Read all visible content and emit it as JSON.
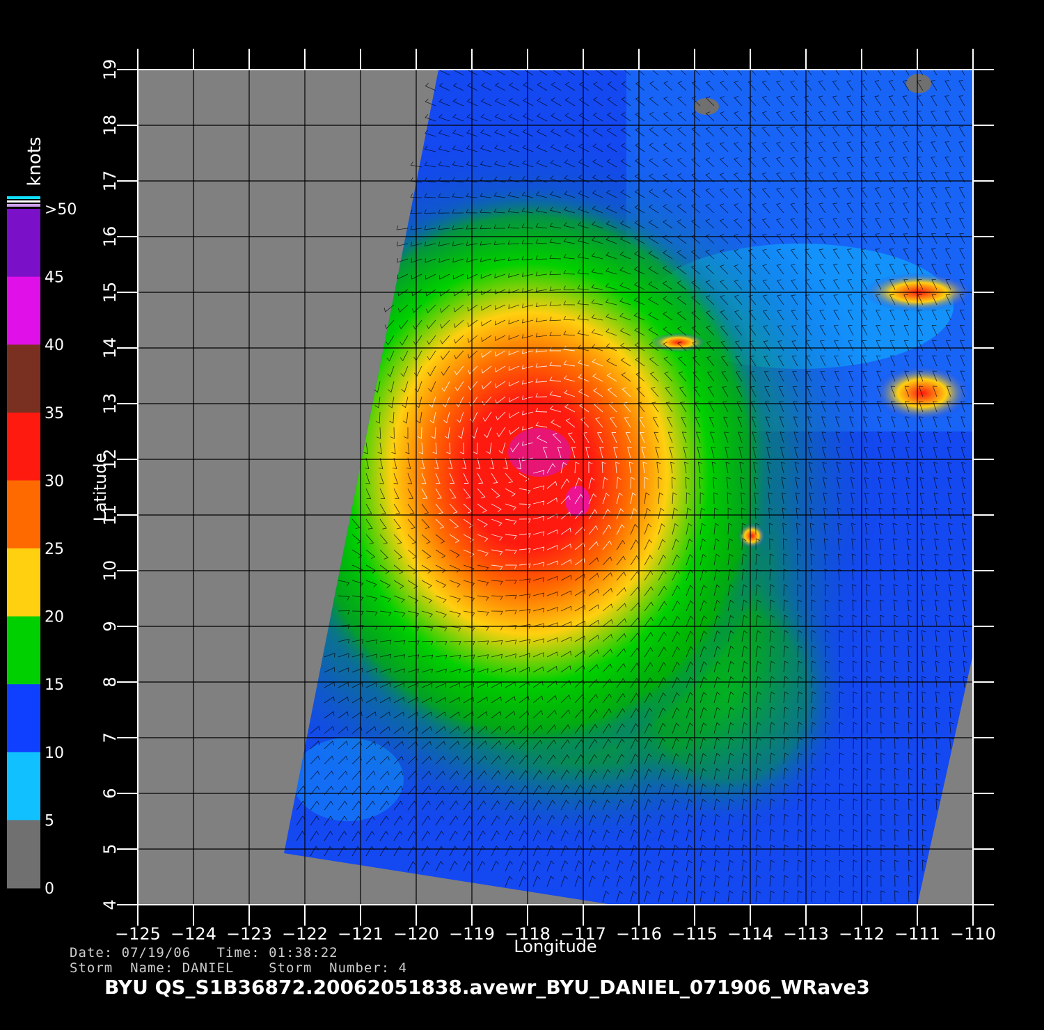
{
  "map": {
    "lon_ticks": [
      "-125",
      "-124",
      "-123",
      "-122",
      "-121",
      "-120",
      "-119",
      "-118",
      "-117",
      "-116",
      "-115",
      "-114",
      "-113",
      "-112",
      "-111",
      "-110"
    ],
    "lat_ticks": [
      "4",
      "5",
      "6",
      "7",
      "8",
      "9",
      "10",
      "11",
      "12",
      "13",
      "14",
      "15",
      "16",
      "17",
      "18",
      "19"
    ],
    "xlabel": "Longitude",
    "ylabel": "Latitude",
    "lon_range": [
      -125,
      -110
    ],
    "lat_range": [
      4,
      19
    ],
    "storm_center": {
      "lon": -117.9,
      "lat": 12.0
    },
    "land_color": "#808080"
  },
  "colorbar": {
    "unit": "knots",
    "labels": [
      ">50",
      "45",
      "40",
      "35",
      "30",
      "25",
      "20",
      "15",
      "10",
      "5",
      "0"
    ],
    "bands": [
      {
        "from": 45,
        "to": 50,
        "color": "#7a10c8"
      },
      {
        "from": 40,
        "to": 45,
        "color": "#e010e8"
      },
      {
        "from": 35,
        "to": 40,
        "color": "#7a3020"
      },
      {
        "from": 30,
        "to": 35,
        "color": "#ff1a10"
      },
      {
        "from": 25,
        "to": 30,
        "color": "#ff6a00"
      },
      {
        "from": 20,
        "to": 25,
        "color": "#ffd010"
      },
      {
        "from": 15,
        "to": 20,
        "color": "#00d000"
      },
      {
        "from": 10,
        "to": 15,
        "color": "#1040ff"
      },
      {
        "from": 5,
        "to": 10,
        "color": "#10c0ff"
      },
      {
        "from": 0,
        "to": 5,
        "color": "#707070"
      }
    ]
  },
  "info": {
    "date_line": "Date: 07/19/06   Time: 01:38:22",
    "storm_line": "Storm  Name: DANIEL    Storm  Number: 4",
    "filename": "BYU  QS_S1B36872.20062051838.avewr_BYU_DANIEL_071906_WRave3"
  }
}
